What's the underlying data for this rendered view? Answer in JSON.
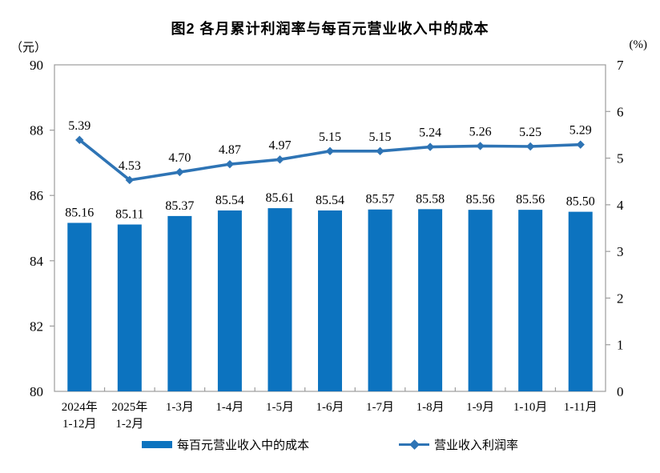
{
  "title": "图2 各月累计利润率与每百元营业收入中的成本",
  "left_axis": {
    "unit": "（元）",
    "min": 80,
    "max": 90,
    "tick_step": 2,
    "tick_labels": [
      "90",
      "88",
      "86",
      "84",
      "82",
      "80"
    ]
  },
  "right_axis": {
    "unit": "(%)",
    "min": 0,
    "max": 7,
    "tick_step": 1,
    "tick_labels": [
      "7",
      "6",
      "5",
      "4",
      "3",
      "2",
      "1",
      "0"
    ]
  },
  "chart_data": {
    "type": "bar",
    "subtype": "bar-line-combo",
    "title": "图2 各月累计利润率与每百元营业收入中的成本",
    "categories": [
      "2024年\n1-12月",
      "2025年\n1-2月",
      "1-3月",
      "1-4月",
      "1-5月",
      "1-6月",
      "1-7月",
      "1-8月",
      "1-9月",
      "1-10月",
      "1-11月"
    ],
    "series": [
      {
        "name": "每百元营业收入中的成本",
        "type": "bar",
        "axis": "left",
        "color": "#0C73BF",
        "values": [
          85.16,
          85.11,
          85.37,
          85.54,
          85.61,
          85.54,
          85.57,
          85.58,
          85.56,
          85.56,
          85.5
        ]
      },
      {
        "name": "营业收入利润率",
        "type": "line",
        "axis": "right",
        "color": "#2E74B5",
        "values": [
          5.39,
          4.53,
          4.7,
          4.87,
          4.97,
          5.15,
          5.15,
          5.24,
          5.26,
          5.25,
          5.29
        ]
      }
    ],
    "left_ylim": [
      80,
      90
    ],
    "right_ylim": [
      0,
      7
    ],
    "grid": false,
    "legend_position": "bottom",
    "data_labels": true,
    "axis_color": "#9c9c9c",
    "label_color": "#000000"
  }
}
